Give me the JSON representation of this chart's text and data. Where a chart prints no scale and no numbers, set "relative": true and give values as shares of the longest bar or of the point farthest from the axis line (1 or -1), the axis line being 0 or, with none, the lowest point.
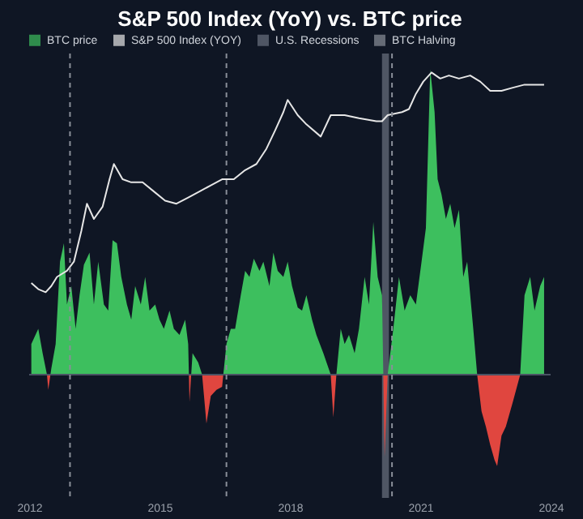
{
  "chart_data": {
    "type": "area",
    "title": "S&P 500 Index (YoY) vs. BTC price",
    "relative": true,
    "legend": "top",
    "grid": false,
    "tick_labels": "x",
    "xlim": [
      2012,
      2024
    ],
    "xticks": [
      2012,
      2015,
      2018,
      2021,
      2024
    ],
    "series": [
      {
        "name": "BTC price",
        "color": "#3dbf5e",
        "x": [
          2012.05,
          2012.21,
          2012.31,
          2012.41,
          2012.44,
          2012.51,
          2012.61,
          2012.71,
          2012.8,
          2012.87,
          2012.97,
          2013.07,
          2013.16,
          2013.26,
          2013.39,
          2013.49,
          2013.59,
          2013.72,
          2013.82,
          2013.92,
          2014.02,
          2014.12,
          2014.25,
          2014.35,
          2014.44,
          2014.57,
          2014.67,
          2014.77,
          2014.9,
          2015.0,
          2015.1,
          2015.23,
          2015.33,
          2015.46,
          2015.59,
          2015.66,
          2015.69,
          2015.76,
          2015.89,
          2015.98,
          2016.08,
          2016.18,
          2016.31,
          2016.44,
          2016.54,
          2016.64,
          2016.74,
          2016.87,
          2016.97,
          2017.07,
          2017.17,
          2017.3,
          2017.39,
          2017.53,
          2017.62,
          2017.72,
          2017.85,
          2017.95,
          2018.05,
          2018.18,
          2018.28,
          2018.38,
          2018.51,
          2018.61,
          2018.77,
          2018.94,
          2019.0,
          2019.07,
          2019.17,
          2019.26,
          2019.36,
          2019.49,
          2019.59,
          2019.72,
          2019.82,
          2019.92,
          2020.02,
          2020.12,
          2020.15,
          2020.18,
          2020.25,
          2020.38,
          2020.51,
          2020.64,
          2020.77,
          2020.9,
          2021.03,
          2021.13,
          2021.23,
          2021.33,
          2021.4,
          2021.49,
          2021.59,
          2021.69,
          2021.79,
          2021.89,
          2021.99,
          2022.08,
          2022.22,
          2022.31,
          2022.41,
          2022.51,
          2022.61,
          2022.71,
          2022.77,
          2022.87,
          2022.97,
          2023.13,
          2023.3,
          2023.4,
          2023.53,
          2023.63,
          2023.76,
          2023.85
        ],
        "values": [
          0.1,
          0.15,
          0.07,
          0,
          -0.05,
          0.02,
          0.1,
          0.37,
          0.43,
          0.23,
          0.29,
          0.15,
          0.26,
          0.36,
          0.4,
          0.23,
          0.37,
          0.23,
          0.21,
          0.44,
          0.43,
          0.32,
          0.23,
          0.18,
          0.29,
          0.23,
          0.32,
          0.21,
          0.23,
          0.18,
          0.15,
          0.21,
          0.15,
          0.13,
          0.18,
          0.1,
          -0.09,
          0.07,
          0.04,
          0,
          -0.16,
          -0.07,
          -0.05,
          -0.04,
          0.1,
          0.15,
          0.15,
          0.26,
          0.34,
          0.32,
          0.38,
          0.34,
          0.37,
          0.29,
          0.4,
          0.34,
          0.32,
          0.37,
          0.29,
          0.22,
          0.21,
          0.26,
          0.18,
          0.13,
          0.07,
          0,
          -0.14,
          0,
          0.15,
          0.1,
          0.13,
          0.07,
          0.15,
          0.32,
          0.23,
          0.5,
          0.32,
          0.26,
          0,
          -0.27,
          0,
          0.15,
          0.32,
          0.21,
          0.26,
          0.23,
          0.37,
          0.48,
          1.0,
          0.86,
          0.64,
          0.59,
          0.51,
          0.56,
          0.48,
          0.54,
          0.32,
          0.37,
          0.15,
          0,
          -0.12,
          -0.17,
          -0.23,
          -0.28,
          -0.3,
          -0.2,
          -0.17,
          -0.09,
          0,
          0.26,
          0.32,
          0.21,
          0.29,
          0.32
        ]
      },
      {
        "name": "S&P 500 Index (YOY)",
        "type": "line",
        "color": "#e6e6e6",
        "x": [
          2012.05,
          2012.21,
          2012.38,
          2012.51,
          2012.64,
          2012.87,
          2013.03,
          2013.2,
          2013.33,
          2013.49,
          2013.69,
          2013.85,
          2013.95,
          2014.15,
          2014.35,
          2014.61,
          2014.87,
          2015.13,
          2015.39,
          2015.66,
          2015.92,
          2016.18,
          2016.44,
          2016.71,
          2016.97,
          2017.23,
          2017.46,
          2017.66,
          2017.85,
          2017.95,
          2018.18,
          2018.38,
          2018.71,
          2018.94,
          2019.26,
          2019.59,
          2019.99,
          2020.12,
          2020.25,
          2020.58,
          2020.74,
          2020.9,
          2021.07,
          2021.26,
          2021.46,
          2021.66,
          2021.89,
          2022.15,
          2022.38,
          2022.61,
          2022.87,
          2023.13,
          2023.4,
          2023.69,
          2023.85
        ],
        "values": [
          0.3,
          0.28,
          0.27,
          0.29,
          0.32,
          0.34,
          0.37,
          0.47,
          0.56,
          0.51,
          0.55,
          0.64,
          0.69,
          0.64,
          0.63,
          0.63,
          0.6,
          0.57,
          0.56,
          0.58,
          0.6,
          0.62,
          0.64,
          0.64,
          0.67,
          0.69,
          0.74,
          0.8,
          0.86,
          0.9,
          0.85,
          0.82,
          0.78,
          0.85,
          0.85,
          0.84,
          0.83,
          0.83,
          0.85,
          0.86,
          0.87,
          0.92,
          0.96,
          0.99,
          0.97,
          0.98,
          0.97,
          0.98,
          0.96,
          0.93,
          0.93,
          0.94,
          0.95,
          0.95,
          0.95
        ]
      }
    ],
    "bands": [
      {
        "axis": "x",
        "from": 2020.12,
        "to": 2020.28,
        "label": "U.S. Recessions",
        "color": "#6b7280"
      }
    ],
    "ref_lines": [
      {
        "axis": "x",
        "value": 2012.94,
        "label": "BTC Halving",
        "color": "#8a8f99",
        "line_style": "dashed"
      },
      {
        "axis": "x",
        "value": 2016.54,
        "color": "#8a8f99",
        "line_style": "dashed"
      },
      {
        "axis": "x",
        "value": 2020.35,
        "color": "#8a8f99",
        "line_style": "dashed"
      }
    ]
  }
}
